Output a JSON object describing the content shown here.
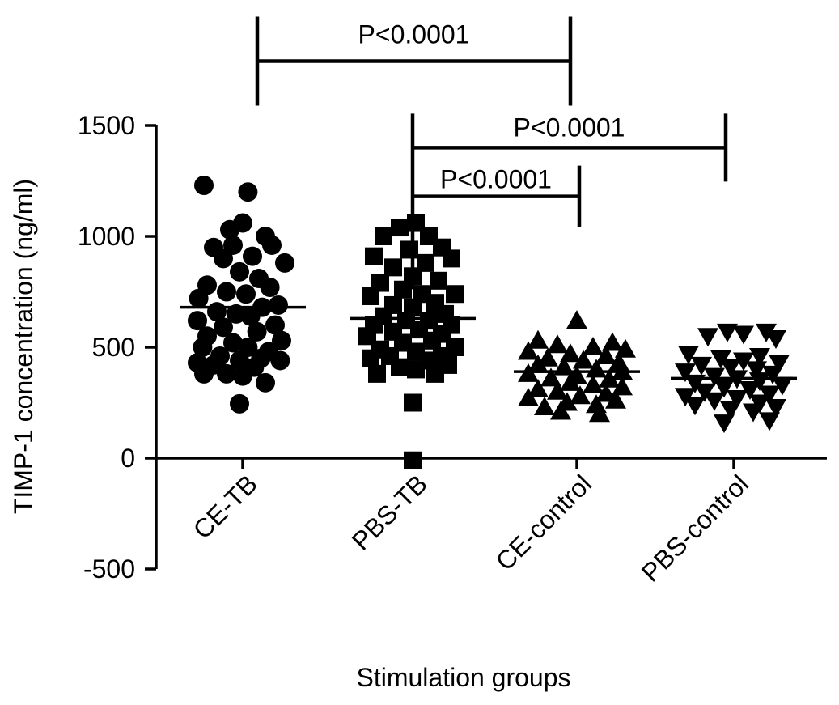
{
  "chart_data": {
    "type": "scatter",
    "title": "",
    "xlabel": "Stimulation groups",
    "ylabel": "TIMP-1 concentration (ng/ml)",
    "ylim": [
      -500,
      1500
    ],
    "yticks": [
      -500,
      0,
      500,
      1000,
      1500
    ],
    "ytick_labels": [
      "-500",
      "0",
      "500",
      "1000",
      "1500"
    ],
    "grid": false,
    "categories": [
      "CE-TB",
      "PBS-TB",
      "CE-control",
      "PBS-control"
    ],
    "series": [
      {
        "category": "CE-TB",
        "marker": "circle",
        "mean": 680,
        "points": [
          {
            "offset": -0.6,
            "value": 1230
          },
          {
            "offset": 0.08,
            "value": 1200
          },
          {
            "offset": 0.0,
            "value": 1060
          },
          {
            "offset": -0.2,
            "value": 1030
          },
          {
            "offset": 0.35,
            "value": 1000
          },
          {
            "offset": 0.45,
            "value": 960
          },
          {
            "offset": -0.45,
            "value": 950
          },
          {
            "offset": -0.15,
            "value": 960
          },
          {
            "offset": 0.15,
            "value": 910
          },
          {
            "offset": -0.3,
            "value": 900
          },
          {
            "offset": 0.65,
            "value": 880
          },
          {
            "offset": -0.05,
            "value": 840
          },
          {
            "offset": 0.25,
            "value": 810
          },
          {
            "offset": -0.55,
            "value": 780
          },
          {
            "offset": 0.42,
            "value": 770
          },
          {
            "offset": -0.25,
            "value": 750
          },
          {
            "offset": 0.05,
            "value": 740
          },
          {
            "offset": -0.68,
            "value": 720
          },
          {
            "offset": 0.55,
            "value": 690
          },
          {
            "offset": 0.3,
            "value": 680
          },
          {
            "offset": -0.4,
            "value": 660
          },
          {
            "offset": -0.1,
            "value": 650
          },
          {
            "offset": 0.12,
            "value": 640
          },
          {
            "offset": -0.7,
            "value": 620
          },
          {
            "offset": 0.5,
            "value": 600
          },
          {
            "offset": -0.3,
            "value": 590
          },
          {
            "offset": 0.22,
            "value": 570
          },
          {
            "offset": -0.55,
            "value": 550
          },
          {
            "offset": 0.6,
            "value": 530
          },
          {
            "offset": -0.15,
            "value": 520
          },
          {
            "offset": 0.08,
            "value": 500
          },
          {
            "offset": -0.62,
            "value": 500
          },
          {
            "offset": 0.4,
            "value": 480
          },
          {
            "offset": -0.35,
            "value": 460
          },
          {
            "offset": 0.28,
            "value": 450
          },
          {
            "offset": -0.05,
            "value": 440
          },
          {
            "offset": 0.58,
            "value": 440
          },
          {
            "offset": -0.7,
            "value": 430
          },
          {
            "offset": -0.45,
            "value": 420
          },
          {
            "offset": 0.18,
            "value": 410
          },
          {
            "offset": -0.6,
            "value": 380
          },
          {
            "offset": -0.25,
            "value": 380
          },
          {
            "offset": 0.0,
            "value": 370
          },
          {
            "offset": 0.35,
            "value": 340
          },
          {
            "offset": -0.05,
            "value": 245
          }
        ]
      },
      {
        "category": "PBS-TB",
        "marker": "square",
        "mean": 630,
        "points": [
          {
            "offset": 0.05,
            "value": 1060
          },
          {
            "offset": -0.2,
            "value": 1040
          },
          {
            "offset": 0.25,
            "value": 1000
          },
          {
            "offset": -0.45,
            "value": 1000
          },
          {
            "offset": 0.45,
            "value": 950
          },
          {
            "offset": -0.05,
            "value": 940
          },
          {
            "offset": -0.6,
            "value": 910
          },
          {
            "offset": 0.6,
            "value": 900
          },
          {
            "offset": 0.2,
            "value": 880
          },
          {
            "offset": -0.3,
            "value": 860
          },
          {
            "offset": 0.0,
            "value": 820
          },
          {
            "offset": 0.4,
            "value": 800
          },
          {
            "offset": -0.5,
            "value": 790
          },
          {
            "offset": -0.15,
            "value": 760
          },
          {
            "offset": 0.65,
            "value": 740
          },
          {
            "offset": 0.15,
            "value": 740
          },
          {
            "offset": -0.65,
            "value": 730
          },
          {
            "offset": 0.35,
            "value": 700
          },
          {
            "offset": -0.3,
            "value": 690
          },
          {
            "offset": 0.0,
            "value": 680
          },
          {
            "offset": 0.5,
            "value": 650
          },
          {
            "offset": -0.45,
            "value": 640
          },
          {
            "offset": -0.1,
            "value": 620
          },
          {
            "offset": 0.25,
            "value": 620
          },
          {
            "offset": 0.6,
            "value": 600
          },
          {
            "offset": -0.6,
            "value": 600
          },
          {
            "offset": 0.1,
            "value": 580
          },
          {
            "offset": -0.3,
            "value": 570
          },
          {
            "offset": 0.45,
            "value": 560
          },
          {
            "offset": -0.7,
            "value": 550
          },
          {
            "offset": 0.3,
            "value": 530
          },
          {
            "offset": -0.15,
            "value": 520
          },
          {
            "offset": 0.65,
            "value": 500
          },
          {
            "offset": -0.5,
            "value": 490
          },
          {
            "offset": 0.05,
            "value": 480
          },
          {
            "offset": 0.45,
            "value": 460
          },
          {
            "offset": -0.35,
            "value": 460
          },
          {
            "offset": -0.65,
            "value": 450
          },
          {
            "offset": 0.25,
            "value": 440
          },
          {
            "offset": 0.55,
            "value": 420
          },
          {
            "offset": -0.2,
            "value": 410
          },
          {
            "offset": 0.05,
            "value": 400
          },
          {
            "offset": -0.55,
            "value": 380
          },
          {
            "offset": 0.35,
            "value": 380
          },
          {
            "offset": 0.0,
            "value": 250
          },
          {
            "offset": 0.0,
            "value": -10
          }
        ]
      },
      {
        "category": "CE-control",
        "marker": "triangle-up",
        "mean": 390,
        "points": [
          {
            "offset": 0.0,
            "value": 620
          },
          {
            "offset": -0.6,
            "value": 530
          },
          {
            "offset": 0.55,
            "value": 520
          },
          {
            "offset": -0.3,
            "value": 510
          },
          {
            "offset": 0.25,
            "value": 500
          },
          {
            "offset": 0.75,
            "value": 490
          },
          {
            "offset": -0.75,
            "value": 480
          },
          {
            "offset": -0.1,
            "value": 470
          },
          {
            "offset": 0.45,
            "value": 460
          },
          {
            "offset": -0.45,
            "value": 450
          },
          {
            "offset": 0.1,
            "value": 440
          },
          {
            "offset": 0.65,
            "value": 430
          },
          {
            "offset": -0.6,
            "value": 420
          },
          {
            "offset": -0.2,
            "value": 410
          },
          {
            "offset": 0.3,
            "value": 400
          },
          {
            "offset": 0.7,
            "value": 390
          },
          {
            "offset": -0.75,
            "value": 380
          },
          {
            "offset": 0.0,
            "value": 370
          },
          {
            "offset": -0.4,
            "value": 360
          },
          {
            "offset": 0.5,
            "value": 355
          },
          {
            "offset": -0.1,
            "value": 340
          },
          {
            "offset": 0.25,
            "value": 330
          },
          {
            "offset": 0.7,
            "value": 320
          },
          {
            "offset": -0.6,
            "value": 310
          },
          {
            "offset": -0.3,
            "value": 300
          },
          {
            "offset": 0.45,
            "value": 290
          },
          {
            "offset": 0.05,
            "value": 280
          },
          {
            "offset": -0.75,
            "value": 270
          },
          {
            "offset": 0.6,
            "value": 260
          },
          {
            "offset": -0.15,
            "value": 250
          },
          {
            "offset": 0.3,
            "value": 240
          },
          {
            "offset": -0.5,
            "value": 230
          },
          {
            "offset": -0.25,
            "value": 210
          },
          {
            "offset": 0.35,
            "value": 200
          }
        ]
      },
      {
        "category": "PBS-control",
        "marker": "triangle-down",
        "mean": 360,
        "points": [
          {
            "offset": -0.1,
            "value": 570
          },
          {
            "offset": 0.5,
            "value": 570
          },
          {
            "offset": 0.15,
            "value": 560
          },
          {
            "offset": -0.4,
            "value": 550
          },
          {
            "offset": 0.65,
            "value": 540
          },
          {
            "offset": -0.7,
            "value": 470
          },
          {
            "offset": 0.4,
            "value": 460
          },
          {
            "offset": -0.2,
            "value": 450
          },
          {
            "offset": 0.15,
            "value": 440
          },
          {
            "offset": 0.7,
            "value": 430
          },
          {
            "offset": -0.5,
            "value": 420
          },
          {
            "offset": -0.05,
            "value": 410
          },
          {
            "offset": 0.35,
            "value": 400
          },
          {
            "offset": -0.75,
            "value": 390
          },
          {
            "offset": 0.6,
            "value": 380
          },
          {
            "offset": -0.3,
            "value": 370
          },
          {
            "offset": 0.05,
            "value": 360
          },
          {
            "offset": 0.4,
            "value": 350
          },
          {
            "offset": -0.6,
            "value": 340
          },
          {
            "offset": 0.75,
            "value": 330
          },
          {
            "offset": -0.15,
            "value": 320
          },
          {
            "offset": 0.25,
            "value": 310
          },
          {
            "offset": -0.45,
            "value": 300
          },
          {
            "offset": 0.55,
            "value": 290
          },
          {
            "offset": -0.75,
            "value": 280
          },
          {
            "offset": 0.05,
            "value": 270
          },
          {
            "offset": -0.3,
            "value": 260
          },
          {
            "offset": 0.4,
            "value": 250
          },
          {
            "offset": -0.6,
            "value": 240
          },
          {
            "offset": 0.65,
            "value": 230
          },
          {
            "offset": -0.05,
            "value": 220
          },
          {
            "offset": 0.3,
            "value": 210
          },
          {
            "offset": 0.55,
            "value": 170
          },
          {
            "offset": -0.15,
            "value": 160
          }
        ]
      }
    ],
    "annotations": [
      {
        "label": "P<0.0001",
        "from": "CE-TB",
        "to": "CE-control",
        "value": 1790
      },
      {
        "label": "P<0.0001",
        "from": "PBS-TB",
        "to": "PBS-control",
        "value": 1400
      },
      {
        "label": "P<0.0001",
        "from": "PBS-TB",
        "to": "CE-control",
        "value": 1180
      }
    ]
  }
}
